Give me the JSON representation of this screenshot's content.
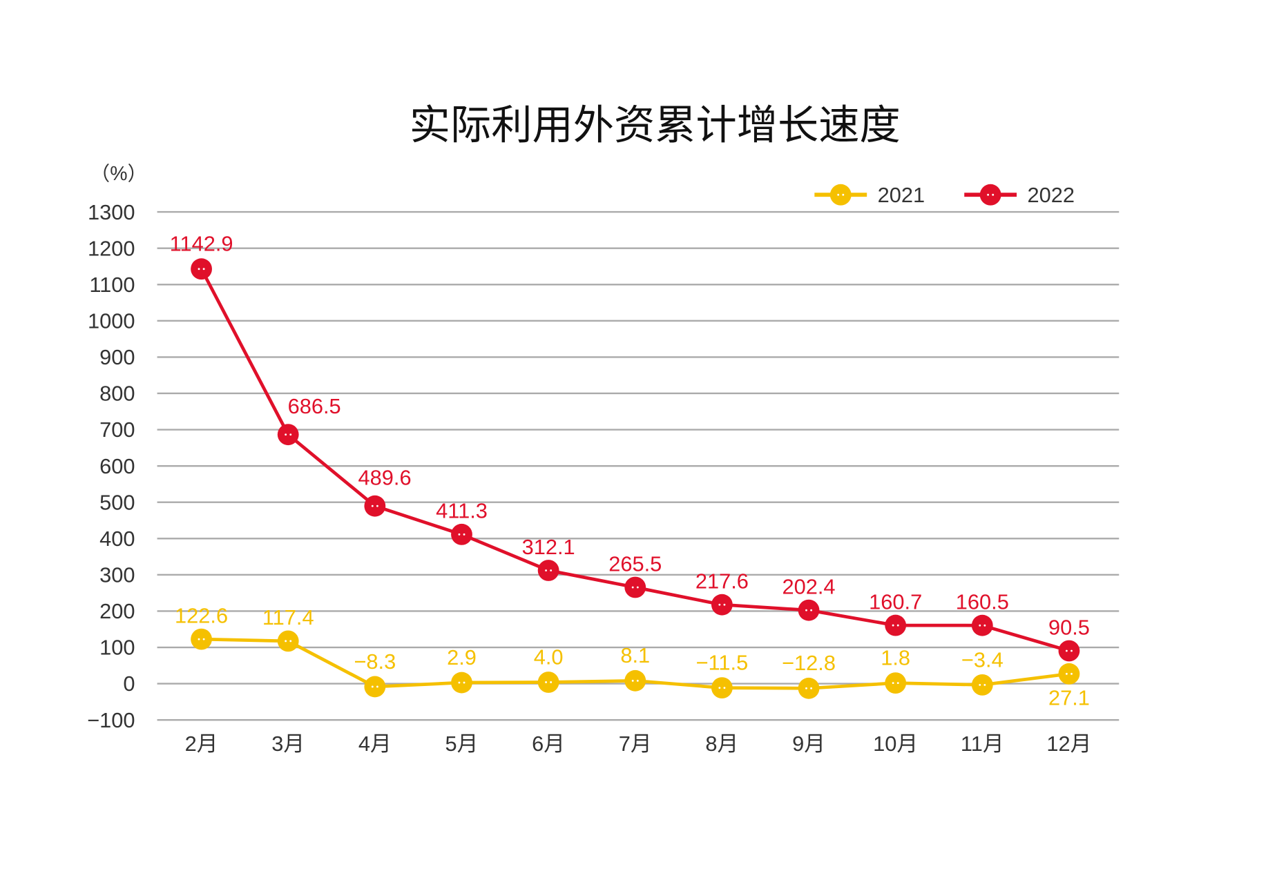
{
  "chart_data": {
    "type": "line",
    "title": "实际利用外资累计增长速度",
    "ylabel": "（%）",
    "xlabel": "",
    "categories": [
      "2月",
      "3月",
      "4月",
      "5月",
      "6月",
      "7月",
      "8月",
      "9月",
      "10月",
      "11月",
      "12月"
    ],
    "ylim": [
      -100,
      1300
    ],
    "yticks": [
      -100,
      0,
      100,
      200,
      300,
      400,
      500,
      600,
      700,
      800,
      900,
      1000,
      1100,
      1200,
      1300
    ],
    "grid": true,
    "legend": "top-right",
    "series": [
      {
        "name": "2021",
        "color": "#f5c000",
        "values": [
          122.6,
          117.4,
          -8.3,
          2.9,
          4.0,
          8.1,
          -11.5,
          -12.8,
          1.8,
          -3.4,
          27.1
        ],
        "labels": [
          "122.6",
          "117.4",
          "−8.3",
          "2.9",
          "4.0",
          "8.1",
          "−11.5",
          "−12.8",
          "1.8",
          "−3.4",
          "27.1"
        ]
      },
      {
        "name": "2022",
        "color": "#e0102a",
        "values": [
          1142.9,
          686.5,
          489.6,
          411.3,
          312.1,
          265.5,
          217.6,
          202.4,
          160.7,
          160.5,
          90.5
        ],
        "labels": [
          "1142.9",
          "686.5",
          "489.6",
          "411.3",
          "312.1",
          "265.5",
          "217.6",
          "202.4",
          "160.7",
          "160.5",
          "90.5"
        ]
      }
    ]
  }
}
